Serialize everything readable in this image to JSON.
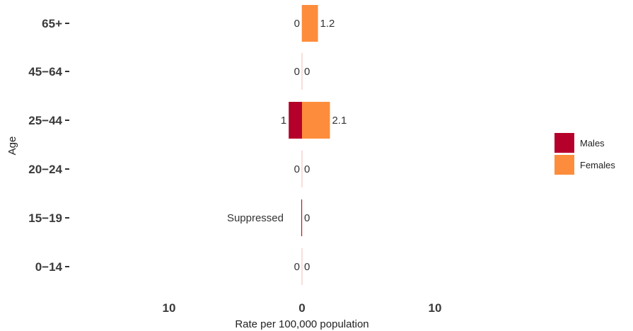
{
  "chart_data": {
    "type": "bar",
    "orientation": "horizontal-population-pyramid",
    "categories": [
      "65+",
      "45−64",
      "25−44",
      "20−24",
      "15−19",
      "0−14"
    ],
    "series": [
      {
        "name": "Males",
        "color": "#b5002b",
        "values": [
          0,
          0,
          1,
          0,
          0.05,
          0
        ],
        "labels": [
          "0",
          "0",
          "1",
          "0",
          "Suppressed",
          "0"
        ]
      },
      {
        "name": "Females",
        "color": "#fd8d3c",
        "values": [
          1.2,
          0,
          2.1,
          0,
          0,
          0
        ],
        "labels": [
          "1.2",
          "0",
          "2.1",
          "0",
          "0",
          "0"
        ]
      }
    ],
    "xlabel": "Rate per 100,000 population",
    "ylabel": "Age",
    "xlim": [
      -17,
      17
    ],
    "xticks": [
      -10,
      0,
      10
    ],
    "xtick_labels": [
      "10",
      "0",
      "10"
    ],
    "grid": false,
    "legend_position": "right"
  }
}
